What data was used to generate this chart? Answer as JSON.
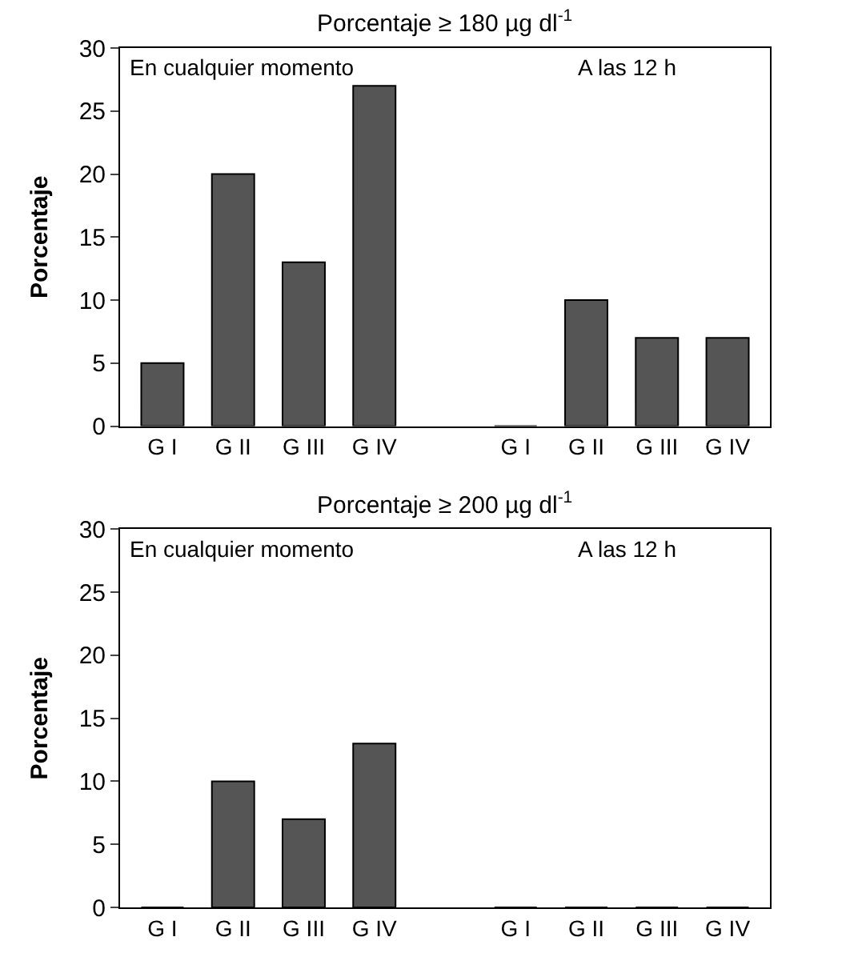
{
  "chart_data": [
    {
      "type": "bar",
      "title": "Porcentaje ≥ 180 µg dl$^{-1}$",
      "ylabel": "Porcentaje",
      "categories": [
        "G I",
        "G II",
        "G III",
        "G IV",
        null,
        "G I",
        "G II",
        "G III",
        "G IV"
      ],
      "values": [
        5,
        20,
        13,
        27,
        null,
        0,
        10,
        7,
        7
      ],
      "color": "#555555",
      "ylim": [
        0,
        30
      ],
      "yticks": [
        0,
        5,
        10,
        15,
        20,
        25,
        30
      ],
      "annotations": [
        "En cualquier momento",
        "A las 12 h"
      ]
    },
    {
      "type": "bar",
      "title": "Porcentaje ≥ 200 µg dl$^{-1}$",
      "ylabel": "Porcentaje",
      "categories": [
        "G I",
        "G II",
        "G III",
        "G IV",
        null,
        "G I",
        "G II",
        "G III",
        "G IV"
      ],
      "values": [
        0,
        10,
        7,
        13,
        null,
        0,
        0,
        0,
        0
      ],
      "color": "#555555",
      "ylim": [
        0,
        30
      ],
      "yticks": [
        0,
        5,
        10,
        15,
        20,
        25,
        30
      ],
      "annotations": [
        "En cualquier momento",
        "A las 12 h"
      ]
    }
  ]
}
